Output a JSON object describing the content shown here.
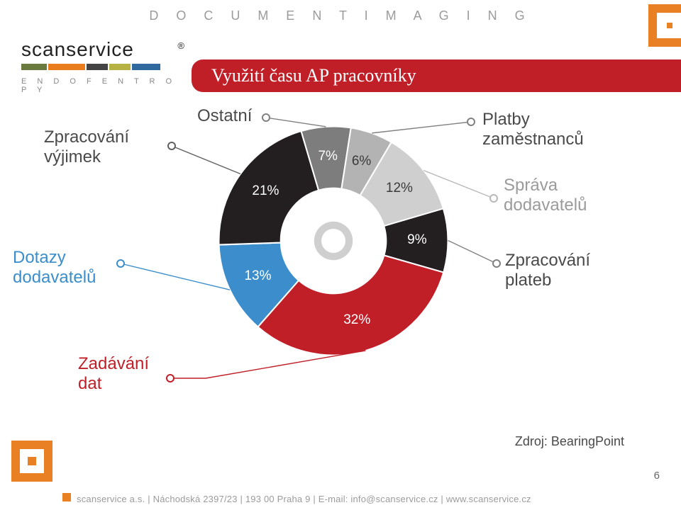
{
  "header": {
    "doc_imaging": "D O C U M E N T   I M A G I N G",
    "logo_name": "scanservice",
    "logo_tm": "®",
    "tagline": "E N D   O F   E N T R O P Y",
    "title": "Využití času AP pracovníky"
  },
  "chart": {
    "type": "donut",
    "background_color": "#ffffff",
    "inner_radius": 0.46,
    "center_dot_outer": "#cfcfcf",
    "center_dot_inner": "#ffffff",
    "slices": [
      {
        "key": "ostatni",
        "label": "Ostatní",
        "value": 7,
        "value_text": "7%",
        "color": "#7d7d7d",
        "label_color": "#4a4a4a"
      },
      {
        "key": "platby",
        "label": "Platby zaměstnanců",
        "value": 6,
        "value_text": "6%",
        "color": "#b3b3b3",
        "label_color": "#4a4a4a"
      },
      {
        "key": "sprava",
        "label": "Správa dodavatelů",
        "value": 12,
        "value_text": "12%",
        "color": "#cfcfcf",
        "label_color": "#9b9b9b"
      },
      {
        "key": "zpplateb",
        "label": "Zpracování plateb",
        "value": 9,
        "value_text": "9%",
        "color": "#231f20",
        "label_color": "#4a4a4a"
      },
      {
        "key": "zadavani",
        "label": "Zadávání dat",
        "value": 32,
        "value_text": "32%",
        "color": "#c11f28",
        "label_color": "#c11f28"
      },
      {
        "key": "dotazy",
        "label": "Dotazy dodavatelů",
        "value": 13,
        "value_text": "13%",
        "color": "#3b8ecb",
        "label_color": "#3b8ecb"
      },
      {
        "key": "vyjimky",
        "label": "Zpracování výjimek",
        "value": 21,
        "value_text": "21%",
        "color": "#231f20",
        "label_color": "#4a4a4a"
      }
    ],
    "label_fontsize": 19,
    "callout_fontsize": 24,
    "callout_marker_radius": 5,
    "source": "Zdroj: BearingPoint"
  },
  "footer": {
    "text": "scanservice a.s. | Náchodská 2397/23 | 193 00 Praha 9 | E-mail: info@scanservice.cz | www.scanservice.cz",
    "page_number": "6"
  }
}
